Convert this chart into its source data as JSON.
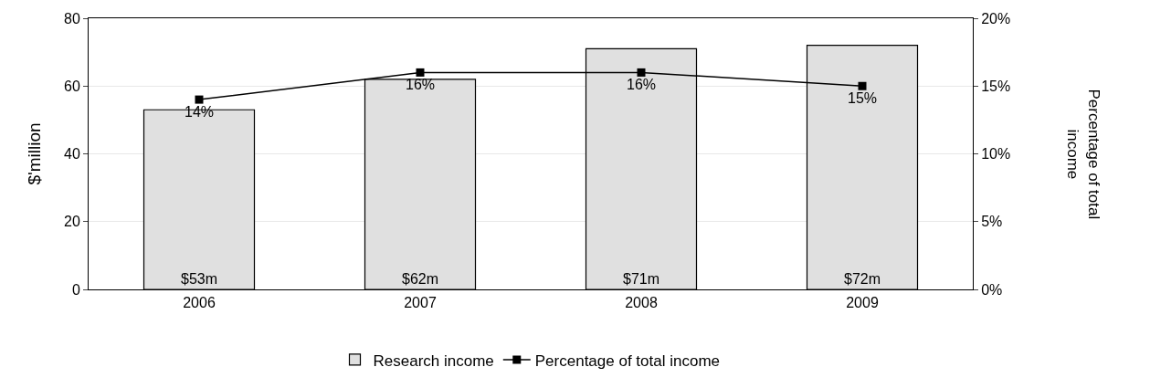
{
  "chart_data": {
    "type": "bar",
    "categories": [
      "2006",
      "2007",
      "2008",
      "2009"
    ],
    "ylabel": "$'million",
    "y2label": "Percentage of total income",
    "series": [
      {
        "name": "Research income",
        "color": "#e0e0e0",
        "values": [
          53,
          62,
          71,
          72
        ],
        "value_labels": [
          "$53m",
          "$62m",
          "$71m",
          "$72m"
        ]
      },
      {
        "name": "Percentage of total income",
        "type": "line",
        "axis": "y2",
        "color": "#000000",
        "marker": "square",
        "values": [
          14,
          16,
          16,
          15
        ],
        "value_labels": [
          "14%",
          "16%",
          "16%",
          "15%"
        ]
      }
    ],
    "ylim": [
      0,
      80
    ],
    "yticks": [
      0,
      20,
      40,
      60,
      80
    ],
    "y2lim": [
      0,
      20
    ],
    "y2ticks": [
      {
        "value": 0,
        "label": "0%"
      },
      {
        "value": 5,
        "label": "5%"
      },
      {
        "value": 10,
        "label": "10%"
      },
      {
        "value": 15,
        "label": "15%"
      },
      {
        "value": 20,
        "label": "20%"
      }
    ],
    "grid": "y",
    "legend": "bottom"
  }
}
